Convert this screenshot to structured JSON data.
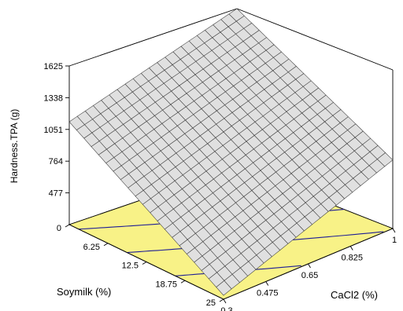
{
  "chart_data": {
    "type": "surface-3d",
    "title": "",
    "zlabel": "Hardness.TPA (g)",
    "xlabel": "Soymilk (%)",
    "ylabel": "CaCl2 (%)",
    "z_ticks": [
      "477",
      "764",
      "1051",
      "1338",
      "1625"
    ],
    "x_ticks": [
      "0",
      "6.25",
      "12.5",
      "18.75",
      "25"
    ],
    "y_ticks": [
      "0.3",
      "0.475",
      "0.65",
      "0.825",
      "1"
    ],
    "zlim": [
      190,
      1625
    ],
    "xlim": [
      0,
      25
    ],
    "ylim": [
      0.3,
      1
    ],
    "surface_corners": {
      "soymilk_0_cacl2_0.3": 1120,
      "soymilk_0_cacl2_1": 1625,
      "soymilk_25_cacl2_0.3": 225,
      "soymilk_25_cacl2_1": 810
    },
    "mesh_divisions": 21,
    "contour_lines": 4,
    "colors": {
      "surface_fill": "#e0e0e0",
      "surface_grid": "#3a3a3a",
      "floor_fill": "#f8f287",
      "contour": "#1e1e96"
    }
  }
}
